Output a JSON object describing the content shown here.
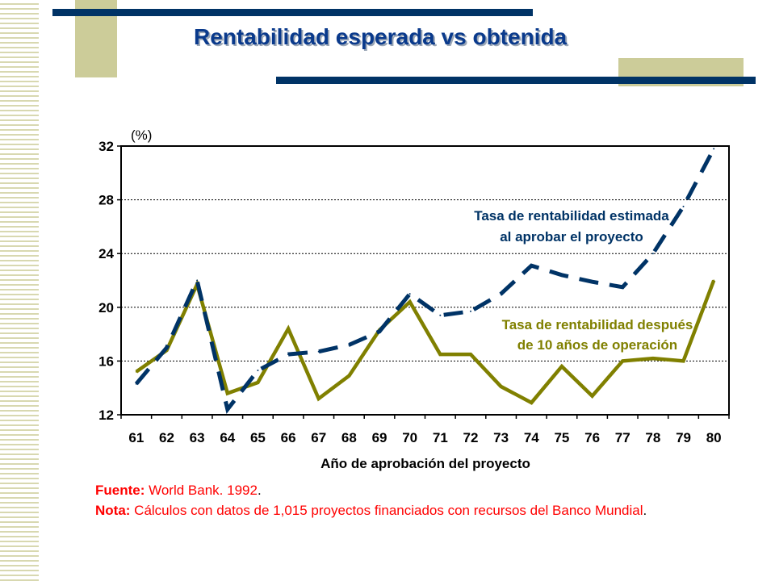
{
  "slide": {
    "title": "Rentabilidad esperada vs obtenida"
  },
  "footer": {
    "source_label": "Fuente:",
    "source_text": " World Bank. 1992",
    "source_end": ".",
    "note_label": "Nota:",
    "note_text": " Cálculos con datos de 1,015 proyectos financiados con recursos del Banco Mundial",
    "note_end": "."
  },
  "colors": {
    "title": "#0a3a8c",
    "accent_navy": "#003366",
    "khaki": "#cccc99",
    "expected_series": "#003366",
    "obtained_series": "#808000",
    "note_red": "#ff0000"
  },
  "chart_data": {
    "type": "line",
    "title": "",
    "ylabel": "(%)",
    "xlabel": "Año de aprobación del proyecto",
    "ylim": [
      12,
      32
    ],
    "yticks": [
      "12",
      "16",
      "20",
      "24",
      "28",
      "32"
    ],
    "categories": [
      "61",
      "62",
      "63",
      "64",
      "65",
      "66",
      "67",
      "68",
      "69",
      "70",
      "71",
      "72",
      "73",
      "74",
      "75",
      "76",
      "77",
      "78",
      "79",
      "80"
    ],
    "grid": "horizontal dotted",
    "series": [
      {
        "name": "Tasa de rentabilidad estimada al aprobar el proyecto",
        "label_lines": [
          "Tasa de rentabilidad estimada",
          "al aprobar el proyecto"
        ],
        "style": "dashed",
        "values": [
          14.3,
          17.0,
          22.0,
          12.4,
          15.3,
          16.5,
          16.7,
          17.2,
          18.2,
          21.0,
          19.4,
          19.7,
          21.0,
          23.1,
          22.4,
          21.9,
          21.5,
          24.0,
          27.5,
          31.8
        ]
      },
      {
        "name": "Tasa de rentabilidad después de 10 años de operación",
        "label_lines": [
          "Tasa de rentabilidad después",
          "de 10 años de operación"
        ],
        "style": "solid",
        "values": [
          15.2,
          16.8,
          21.7,
          13.6,
          14.4,
          18.4,
          13.2,
          14.9,
          18.3,
          20.4,
          16.5,
          16.5,
          14.1,
          12.9,
          15.6,
          13.4,
          16.0,
          16.2,
          16.0,
          22.0
        ]
      }
    ]
  }
}
